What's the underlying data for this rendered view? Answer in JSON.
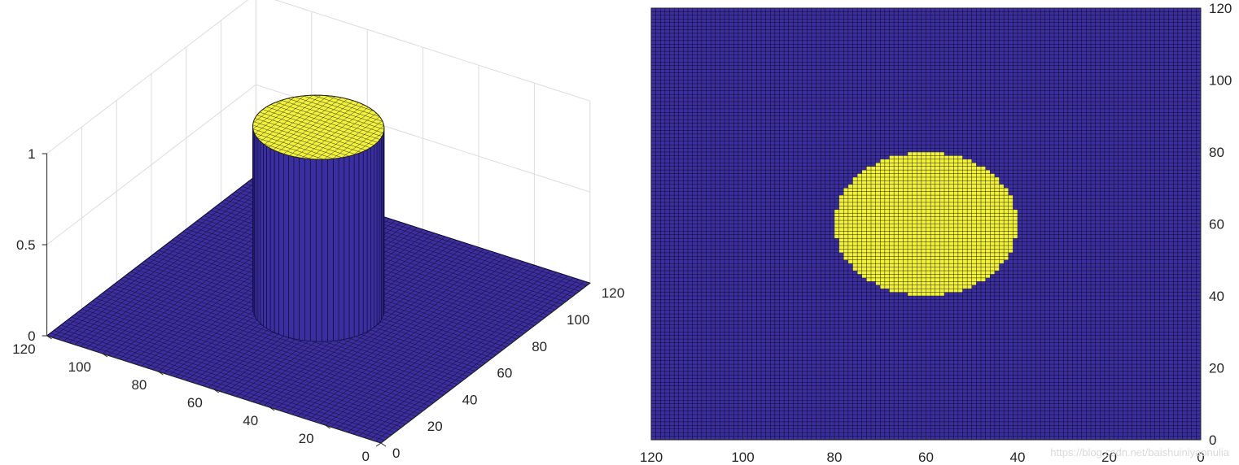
{
  "colors": {
    "background": "#ffffff",
    "low_face": "#3b2fa0",
    "high_face": "#f2f23a",
    "edge": "#000000",
    "axis": "#262626",
    "grid": "#dcdcdc"
  },
  "watermark": "https://blog.csdn.net/baishuiniyaonulia",
  "chart_data": [
    {
      "type": "surface3d",
      "title": "",
      "xlabel": "",
      "ylabel": "",
      "zlabel": "",
      "xlim": [
        0,
        120
      ],
      "ylim": [
        0,
        120
      ],
      "zlim": [
        0,
        1
      ],
      "x_ticks": [
        0,
        20,
        40,
        60,
        80,
        100,
        120
      ],
      "y_ticks": [
        0,
        20,
        40,
        60,
        80,
        100,
        120
      ],
      "z_ticks": [
        0,
        0.5,
        1
      ],
      "z_tick_labels": [
        "0",
        "0.5",
        "1"
      ],
      "grid": true,
      "description_values": {
        "disk_center": [
          60,
          60
        ],
        "disk_radius": 20,
        "inside_value": 1,
        "outside_value": 0
      }
    },
    {
      "type": "heatmap",
      "title": "",
      "xlabel": "",
      "ylabel": "",
      "xlim": [
        0,
        120
      ],
      "ylim": [
        0,
        120
      ],
      "x_direction": "reverse",
      "y_axis_location": "right",
      "x_ticks": [
        0,
        20,
        40,
        60,
        80,
        100,
        120
      ],
      "y_ticks": [
        0,
        20,
        40,
        60,
        80,
        100,
        120
      ],
      "grid_cells": 120,
      "values_rule": "1 inside disk center (60,60) radius 20, else 0",
      "disk_center": [
        60,
        60
      ],
      "disk_radius": 20
    }
  ]
}
